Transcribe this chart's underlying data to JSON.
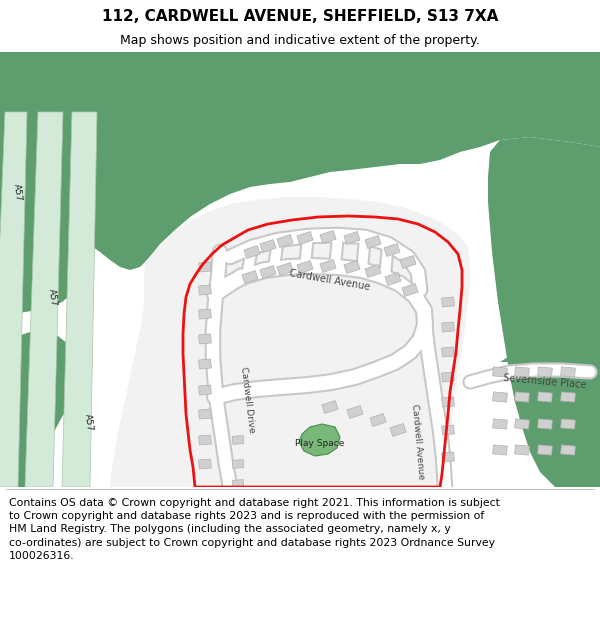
{
  "title": "112, CARDWELL AVENUE, SHEFFIELD, S13 7XA",
  "subtitle": "Map shows position and indicative extent of the property.",
  "footer": "Contains OS data © Crown copyright and database right 2021. This information is subject\nto Crown copyright and database rights 2023 and is reproduced with the permission of\nHM Land Registry. The polygons (including the associated geometry, namely x, y\nco-ordinates) are subject to Crown copyright and database rights 2023 Ordnance Survey\n100026316.",
  "bg_color": "#ffffff",
  "green_color": "#5e9e6e",
  "lt_green_road": "#d4ead9",
  "white_road": "#ffffff",
  "grey_road_border": "#c8c8c8",
  "building_fill": "#d0d0d0",
  "building_edge": "#b0b0b0",
  "play_green": "#7ab87a",
  "red_line": "#ee1111",
  "title_fs": 11,
  "subtitle_fs": 9,
  "footer_fs": 7.8
}
